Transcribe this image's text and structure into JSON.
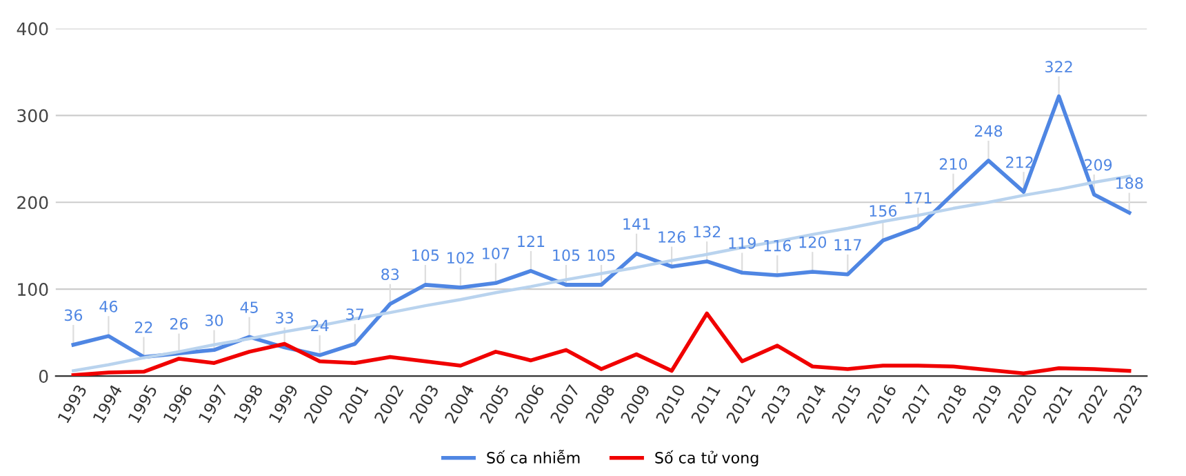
{
  "chart_data": {
    "type": "line",
    "categories": [
      "1993",
      "1994",
      "1995",
      "1996",
      "1997",
      "1998",
      "1999",
      "2000",
      "2001",
      "2002",
      "2003",
      "2004",
      "2005",
      "2006",
      "2007",
      "2008",
      "2009",
      "2010",
      "2011",
      "2012",
      "2013",
      "2014",
      "2015",
      "2016",
      "2017",
      "2018",
      "2019",
      "2020",
      "2021",
      "2022",
      "2023"
    ],
    "series": [
      {
        "name": "Số ca nhiễm",
        "color": "#4f86e3",
        "data_labels": true,
        "values": [
          36,
          46,
          22,
          26,
          30,
          45,
          33,
          24,
          37,
          83,
          105,
          102,
          107,
          121,
          105,
          105,
          141,
          126,
          132,
          119,
          116,
          120,
          117,
          156,
          171,
          210,
          248,
          212,
          322,
          209,
          188
        ]
      },
      {
        "name": "Số ca tử vong",
        "color": "#f00000",
        "values": [
          1,
          4,
          5,
          20,
          15,
          28,
          37,
          17,
          15,
          22,
          17,
          12,
          28,
          18,
          30,
          8,
          25,
          6,
          72,
          17,
          35,
          11,
          8,
          12,
          12,
          11,
          7,
          3,
          9,
          8,
          6
        ]
      },
      {
        "type": "line",
        "color": "#b9d3ee",
        "values": [
          6,
          13,
          21,
          28,
          36,
          43,
          51,
          58,
          66,
          73,
          81,
          88,
          96,
          103,
          111,
          118,
          125,
          133,
          140,
          148,
          155,
          163,
          170,
          178,
          185,
          193,
          200,
          208,
          215,
          223,
          230
        ]
      }
    ],
    "ylim": [
      0,
      400
    ],
    "yticks": [
      0,
      100,
      200,
      300,
      400
    ],
    "grid": "y",
    "legend": "bottom"
  }
}
